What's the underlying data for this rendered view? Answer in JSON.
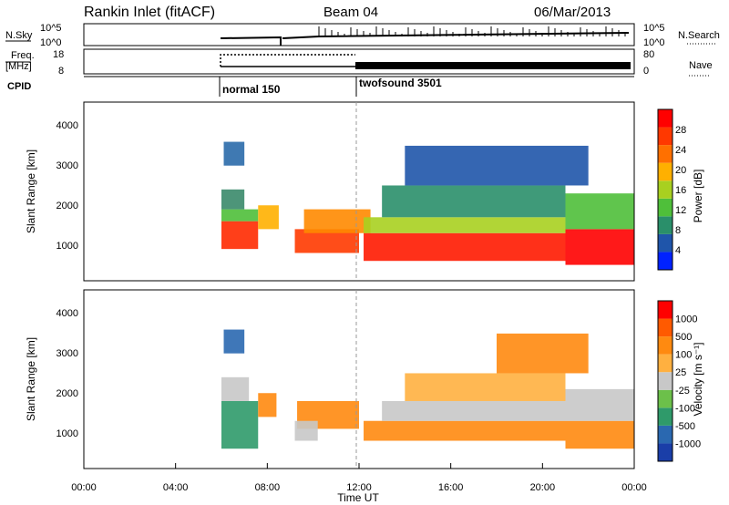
{
  "header": {
    "station": "Rankin Inlet (fitACF)",
    "beam": "Beam 04",
    "date": "06/Mar/2013"
  },
  "nsky": {
    "label": "N.Sky",
    "ticks": [
      "10^5",
      "10^0"
    ],
    "right_ticks": [
      "10^5",
      "10^0"
    ],
    "right_label": "N.Search"
  },
  "freq": {
    "label_line1": "Freq.",
    "label_line2": "[MHz]",
    "ticks": [
      "18",
      "8"
    ],
    "right_ticks": [
      "80",
      "0"
    ],
    "right_label": "Nave"
  },
  "cpid": {
    "label": "CPID",
    "segments": [
      {
        "start_h": 6.0,
        "text": "normal 150"
      },
      {
        "start_h": 12.0,
        "text": "twofsound 3501"
      }
    ]
  },
  "x_axis": {
    "label": "Time UT",
    "ticks": [
      "00:00",
      "04:00",
      "08:00",
      "12:00",
      "16:00",
      "20:00",
      "00:00"
    ],
    "range_h": [
      0,
      24
    ]
  },
  "power_panel": {
    "ylabel": "Slant Range [km]",
    "yticks": [
      "4000",
      "3000",
      "2000",
      "1000"
    ],
    "colorbar": {
      "label": "Power [dB]",
      "levels": [
        "28",
        "24",
        "20",
        "16",
        "12",
        "8",
        "4"
      ],
      "colors": [
        "#0022ff",
        "#1f55aa",
        "#2a8f6a",
        "#4fbf3a",
        "#a8d020",
        "#ffb000",
        "#ff7000",
        "#ff3800",
        "#ff0000"
      ]
    }
  },
  "velocity_panel": {
    "ylabel": "Slant Range [km]",
    "yticks": [
      "4000",
      "3000",
      "2000",
      "1000"
    ],
    "colorbar": {
      "label": "Velocity [m s⁻¹]",
      "levels": [
        "1000",
        "500",
        "100",
        "25",
        "-25",
        "-100",
        "-500",
        "-1000"
      ],
      "colors": [
        "#1a3ea8",
        "#2a68b0",
        "#2f9a6a",
        "#6cc04a",
        "#c8c8c8",
        "#ffb040",
        "#ff8a10",
        "#ff5a00",
        "#ff0000"
      ]
    }
  },
  "chart_data": {
    "type": "heatmap",
    "x_range_h": [
      0,
      24
    ],
    "y_range_km": [
      0,
      4500
    ],
    "power_bands": [
      {
        "t0": 6.0,
        "t1": 7.6,
        "r0": 800,
        "r1": 1500,
        "color": "#ff2a00"
      },
      {
        "t0": 6.0,
        "t1": 7.6,
        "r0": 1500,
        "r1": 1800,
        "color": "#4fbf3a"
      },
      {
        "t0": 6.0,
        "t1": 7.0,
        "r0": 1800,
        "r1": 2300,
        "color": "#3a8a6a"
      },
      {
        "t0": 6.1,
        "t1": 7.0,
        "r0": 2900,
        "r1": 3500,
        "color": "#2a6aaa"
      },
      {
        "t0": 7.6,
        "t1": 8.5,
        "r0": 1300,
        "r1": 1900,
        "color": "#ffb000"
      },
      {
        "t0": 9.2,
        "t1": 12.0,
        "r0": 700,
        "r1": 1300,
        "color": "#ff3a00"
      },
      {
        "t0": 9.6,
        "t1": 12.5,
        "r0": 1200,
        "r1": 1800,
        "color": "#ff8a00"
      },
      {
        "t0": 12.2,
        "t1": 21.0,
        "r0": 500,
        "r1": 1200,
        "color": "#ff1a00"
      },
      {
        "t0": 12.2,
        "t1": 21.0,
        "r0": 1200,
        "r1": 1600,
        "color": "#a8d020"
      },
      {
        "t0": 13.0,
        "t1": 21.0,
        "r0": 1600,
        "r1": 2400,
        "color": "#2a8f6a"
      },
      {
        "t0": 14.0,
        "t1": 22.0,
        "r0": 2400,
        "r1": 3400,
        "color": "#1f55aa"
      },
      {
        "t0": 21.0,
        "t1": 24.0,
        "r0": 400,
        "r1": 1300,
        "color": "#ff0000"
      },
      {
        "t0": 21.0,
        "t1": 24.0,
        "r0": 1300,
        "r1": 2200,
        "color": "#4fbf3a"
      }
    ],
    "velocity_bands": [
      {
        "t0": 6.0,
        "t1": 7.6,
        "r0": 500,
        "r1": 1700,
        "color": "#2f9a6a"
      },
      {
        "t0": 6.0,
        "t1": 7.2,
        "r0": 1700,
        "r1": 2300,
        "color": "#c8c8c8"
      },
      {
        "t0": 6.1,
        "t1": 7.0,
        "r0": 2900,
        "r1": 3500,
        "color": "#2a68b0"
      },
      {
        "t0": 7.6,
        "t1": 8.4,
        "r0": 1300,
        "r1": 1900,
        "color": "#ff8a10"
      },
      {
        "t0": 9.3,
        "t1": 12.0,
        "r0": 1000,
        "r1": 1700,
        "color": "#ff8a10"
      },
      {
        "t0": 9.2,
        "t1": 10.2,
        "r0": 700,
        "r1": 1200,
        "color": "#c8c8c8"
      },
      {
        "t0": 12.2,
        "t1": 21.0,
        "r0": 700,
        "r1": 1200,
        "color": "#ff8a10"
      },
      {
        "t0": 13.0,
        "t1": 21.0,
        "r0": 1200,
        "r1": 1700,
        "color": "#c8c8c8"
      },
      {
        "t0": 14.0,
        "t1": 21.0,
        "r0": 1700,
        "r1": 2400,
        "color": "#ffb040"
      },
      {
        "t0": 18.0,
        "t1": 22.0,
        "r0": 2400,
        "r1": 3400,
        "color": "#ff8a10"
      },
      {
        "t0": 21.0,
        "t1": 24.0,
        "r0": 500,
        "r1": 1200,
        "color": "#ff8a10"
      },
      {
        "t0": 21.0,
        "t1": 24.0,
        "r0": 1200,
        "r1": 2000,
        "color": "#c8c8c8"
      }
    ]
  }
}
